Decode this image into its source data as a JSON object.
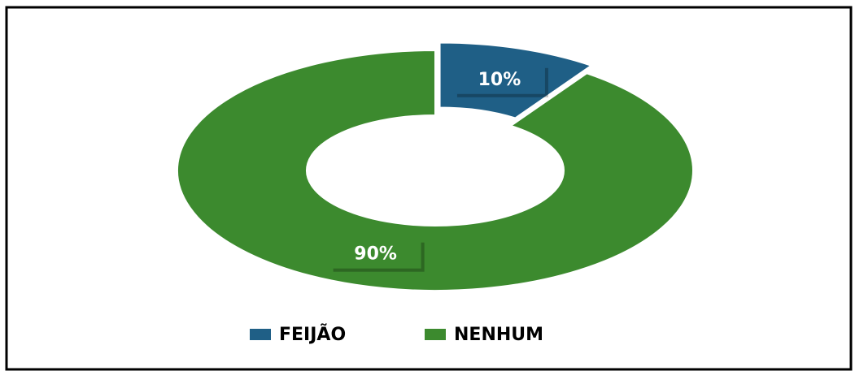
{
  "chart_data": {
    "type": "donut",
    "categories": [
      "FEIJÃO",
      "NENHUM"
    ],
    "values": [
      10,
      90
    ],
    "value_labels": [
      "10%",
      "90%"
    ],
    "colors": [
      "#1f5f86",
      "#3c8a2e"
    ],
    "legend": "bottom"
  }
}
